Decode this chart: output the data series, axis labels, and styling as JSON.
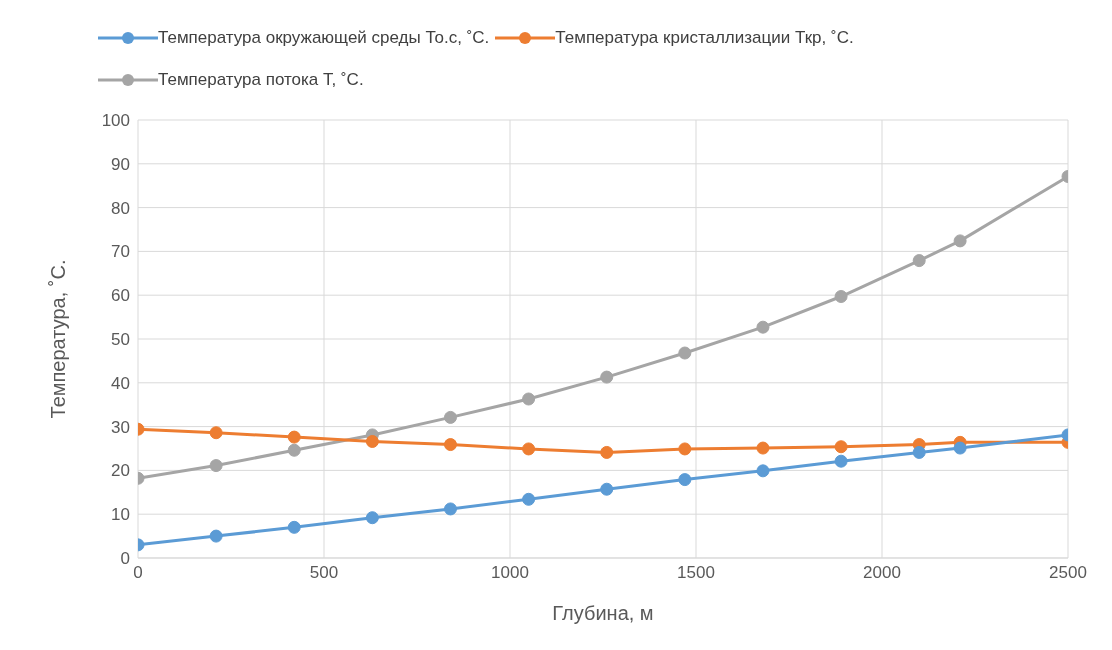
{
  "chart_data": {
    "type": "line",
    "xlabel": "Глубина, м",
    "ylabel": "Температура,  ˚С.",
    "x": [
      0,
      210,
      420,
      630,
      840,
      1050,
      1260,
      1470,
      1680,
      1890,
      2100,
      2210,
      2500
    ],
    "series": [
      {
        "name": "Температура окружающей среды То.с,  ˚С.",
        "color": "#5b9bd5",
        "values": [
          3,
          5,
          7,
          9.2,
          11.2,
          13.4,
          15.7,
          17.9,
          19.9,
          22.1,
          24.1,
          25.1,
          28.1
        ]
      },
      {
        "name": "Температура кристаллизации Ткр, ˚С.",
        "color": "#ed7d31",
        "values": [
          29.4,
          28.6,
          27.6,
          26.6,
          25.9,
          24.9,
          24.1,
          24.9,
          25.1,
          25.4,
          25.9,
          26.4,
          26.4
        ]
      },
      {
        "name": "Температура потока Т, ˚С.",
        "color": "#a5a5a5",
        "values": [
          18.2,
          21.1,
          24.6,
          28.1,
          32.1,
          36.3,
          41.3,
          46.8,
          52.7,
          59.7,
          67.9,
          72.4,
          87.1
        ]
      }
    ],
    "xlim": [
      0,
      2500
    ],
    "xticks": [
      0,
      500,
      1000,
      1500,
      2000,
      2500
    ],
    "ylim": [
      0,
      100
    ],
    "yticks": [
      0,
      10,
      20,
      30,
      40,
      50,
      60,
      70,
      80,
      90,
      100
    ],
    "grid": true,
    "legend": "top",
    "marker": "circle",
    "line_style": "solid"
  }
}
